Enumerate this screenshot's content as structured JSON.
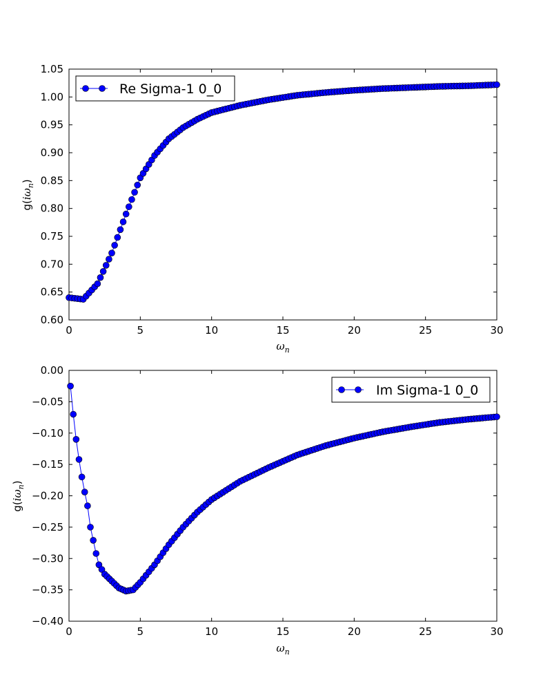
{
  "chart_data": [
    {
      "type": "line",
      "xlabel": "ω_n",
      "ylabel": "g(iω_n)",
      "xlim": [
        0,
        30
      ],
      "ylim": [
        0.6,
        1.05
      ],
      "xticks": [
        "0",
        "5",
        "10",
        "15",
        "20",
        "25",
        "30"
      ],
      "yticks": [
        "0.60",
        "0.65",
        "0.70",
        "0.75",
        "0.80",
        "0.85",
        "0.90",
        "0.95",
        "1.00",
        "1.05"
      ],
      "legend": "top-left",
      "grid": false,
      "series": [
        {
          "name": "Re Sigma-1 0_0",
          "color": "#0000ff",
          "marker": "circle",
          "x": [
            0,
            1,
            2,
            3,
            4,
            5,
            6,
            7,
            8,
            9,
            10,
            12,
            14,
            16,
            18,
            20,
            22,
            24,
            26,
            28,
            30
          ],
          "y": [
            0.64,
            0.637,
            0.665,
            0.72,
            0.79,
            0.855,
            0.895,
            0.925,
            0.945,
            0.96,
            0.972,
            0.985,
            0.995,
            1.003,
            1.008,
            1.012,
            1.015,
            1.017,
            1.019,
            1.02,
            1.022
          ]
        }
      ]
    },
    {
      "type": "line",
      "xlabel": "ω_n",
      "ylabel": "g(iω_n)",
      "xlim": [
        0,
        30
      ],
      "ylim": [
        -0.4,
        0.0
      ],
      "xticks": [
        "0",
        "5",
        "10",
        "15",
        "20",
        "25",
        "30"
      ],
      "yticks": [
        "−0.40",
        "−0.35",
        "−0.30",
        "−0.25",
        "−0.20",
        "−0.15",
        "−0.10",
        "−0.05",
        "0.00"
      ],
      "legend": "top-right",
      "grid": false,
      "series": [
        {
          "name": "Im Sigma-1 0_0",
          "color": "#0000ff",
          "marker": "circle",
          "x": [
            0.1,
            0.3,
            0.5,
            0.7,
            0.9,
            1.1,
            1.3,
            1.5,
            1.7,
            1.9,
            2.1,
            2.5,
            3.0,
            3.5,
            4.0,
            4.5,
            5,
            6,
            7,
            8,
            9,
            10,
            12,
            14,
            16,
            18,
            20,
            22,
            24,
            26,
            28,
            30
          ],
          "y": [
            -0.025,
            -0.07,
            -0.11,
            -0.142,
            -0.17,
            -0.194,
            -0.216,
            -0.25,
            -0.271,
            -0.292,
            -0.31,
            -0.325,
            -0.336,
            -0.347,
            -0.352,
            -0.35,
            -0.338,
            -0.31,
            -0.278,
            -0.25,
            -0.226,
            -0.206,
            -0.177,
            -0.155,
            -0.135,
            -0.12,
            -0.108,
            -0.098,
            -0.09,
            -0.083,
            -0.078,
            -0.074
          ]
        }
      ]
    }
  ]
}
